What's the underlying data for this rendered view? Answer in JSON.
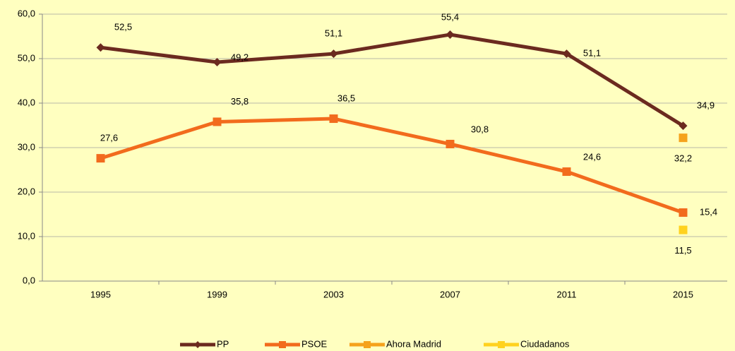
{
  "chart_data": {
    "type": "line",
    "categories": [
      "1995",
      "1999",
      "2003",
      "2007",
      "2011",
      "2015"
    ],
    "series": [
      {
        "name": "PP",
        "color": "#6b2a1f",
        "marker": "diamond",
        "values": [
          52.5,
          49.2,
          51.1,
          55.4,
          51.1,
          34.9
        ],
        "value_labels": [
          "52,5",
          "49,2",
          "51,1",
          "55,4",
          "51,1",
          "34,9"
        ]
      },
      {
        "name": "PSOE",
        "color": "#f26b1d",
        "marker": "square",
        "values": [
          27.6,
          35.8,
          36.5,
          30.8,
          24.6,
          15.4
        ],
        "value_labels": [
          "27,6",
          "35,8",
          "36,5",
          "30,8",
          "24,6",
          "15,4"
        ]
      },
      {
        "name": "Ahora Madrid",
        "color": "#f5a21c",
        "marker": "square",
        "values": [
          null,
          null,
          null,
          null,
          null,
          32.2
        ],
        "value_labels": [
          null,
          null,
          null,
          null,
          null,
          "32,2"
        ]
      },
      {
        "name": "Ciudadanos",
        "color": "#ffd21f",
        "marker": "square",
        "values": [
          null,
          null,
          null,
          null,
          null,
          11.5
        ],
        "value_labels": [
          null,
          null,
          null,
          null,
          null,
          "11,5"
        ]
      }
    ],
    "ylim": [
      0,
      60
    ],
    "yticks": [
      {
        "value": 0,
        "label": "0,0"
      },
      {
        "value": 10,
        "label": "10,0"
      },
      {
        "value": 20,
        "label": "20,0"
      },
      {
        "value": 30,
        "label": "30,0"
      },
      {
        "value": 40,
        "label": "40,0"
      },
      {
        "value": 50,
        "label": "50,0"
      },
      {
        "value": 60,
        "label": "60,0"
      }
    ],
    "grid": true,
    "legend": "bottom"
  }
}
